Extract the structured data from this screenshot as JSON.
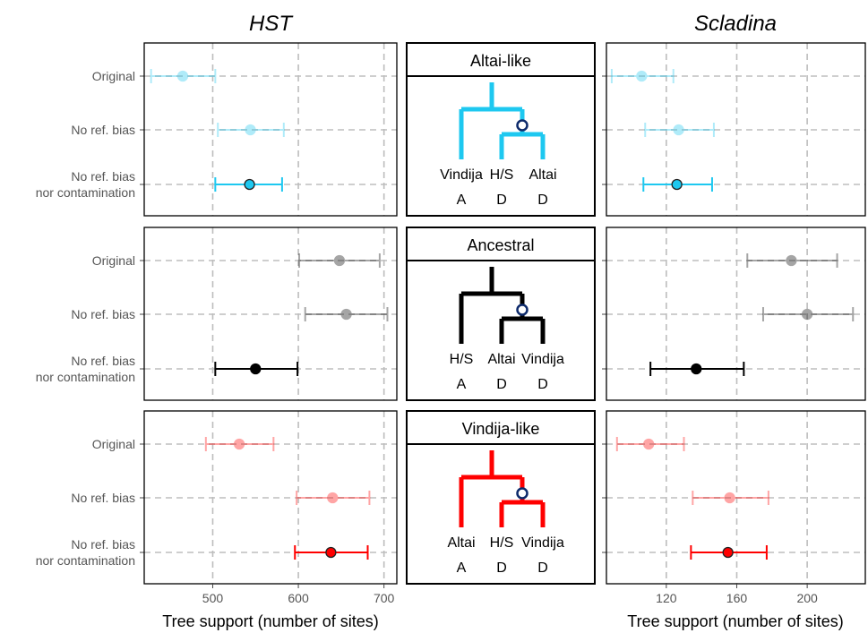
{
  "chart_data": {
    "type": "scatter",
    "description_of_layout": "3 rows (topologies) x 2 columns (HST, Scladina) of dot-and-errorbar panels with tree diagrams in between",
    "column_titles": [
      "HST",
      "Scladina"
    ],
    "y_categories": [
      "Original",
      "No ref. bias",
      "No ref. bias\nnor contamination"
    ],
    "xlabel": "Tree support (number of sites)",
    "axes": [
      {
        "name": "HST",
        "xlim": [
          420,
          715
        ],
        "ticks": [
          500,
          600,
          700
        ]
      },
      {
        "name": "Scladina",
        "xlim": [
          86,
          233
        ],
        "ticks": [
          120,
          160,
          200
        ]
      }
    ],
    "rows": [
      {
        "topology": "Altai-like",
        "color": "#1ec8f0",
        "tree": {
          "leaves": [
            "Vindija",
            "H/S",
            "Altai"
          ],
          "states": [
            "A",
            "D",
            "D"
          ]
        },
        "HST": [
          {
            "category": "Original",
            "value": 465,
            "lo": 428,
            "hi": 503
          },
          {
            "category": "No ref. bias",
            "value": 544,
            "lo": 506,
            "hi": 583
          },
          {
            "category": "No ref. bias\nnor contamination",
            "value": 543,
            "lo": 503,
            "hi": 581
          }
        ],
        "Scladina": [
          {
            "category": "Original",
            "value": 106,
            "lo": 89,
            "hi": 124
          },
          {
            "category": "No ref. bias",
            "value": 127,
            "lo": 108,
            "hi": 147
          },
          {
            "category": "No ref. bias\nnor contamination",
            "value": 126,
            "lo": 107,
            "hi": 146
          }
        ]
      },
      {
        "topology": "Ancestral",
        "color": "#000000",
        "tree": {
          "leaves": [
            "H/S",
            "Altai",
            "Vindija"
          ],
          "states": [
            "A",
            "D",
            "D"
          ]
        },
        "HST": [
          {
            "category": "Original",
            "value": 648,
            "lo": 601,
            "hi": 695
          },
          {
            "category": "No ref. bias",
            "value": 656,
            "lo": 608,
            "hi": 704
          },
          {
            "category": "No ref. bias\nnor contamination",
            "value": 550,
            "lo": 503,
            "hi": 599
          }
        ],
        "Scladina": [
          {
            "category": "Original",
            "value": 191,
            "lo": 166,
            "hi": 217
          },
          {
            "category": "No ref. bias",
            "value": 200,
            "lo": 175,
            "hi": 226
          },
          {
            "category": "No ref. bias\nnor contamination",
            "value": 137,
            "lo": 111,
            "hi": 164
          }
        ]
      },
      {
        "topology": "Vindija-like",
        "color": "#ff0000",
        "tree": {
          "leaves": [
            "Altai",
            "H/S",
            "Vindija"
          ],
          "states": [
            "A",
            "D",
            "D"
          ]
        },
        "HST": [
          {
            "category": "Original",
            "value": 531,
            "lo": 492,
            "hi": 571
          },
          {
            "category": "No ref. bias",
            "value": 640,
            "lo": 598,
            "hi": 683
          },
          {
            "category": "No ref. bias\nnor contamination",
            "value": 638,
            "lo": 596,
            "hi": 681
          }
        ],
        "Scladina": [
          {
            "category": "Original",
            "value": 110,
            "lo": 92,
            "hi": 130
          },
          {
            "category": "No ref. bias",
            "value": 156,
            "lo": 135,
            "hi": 178
          },
          {
            "category": "No ref. bias\nnor contamination",
            "value": 155,
            "lo": 134,
            "hi": 177
          }
        ]
      }
    ],
    "grid": true,
    "faded_categories": [
      "Original",
      "No ref. bias"
    ]
  }
}
